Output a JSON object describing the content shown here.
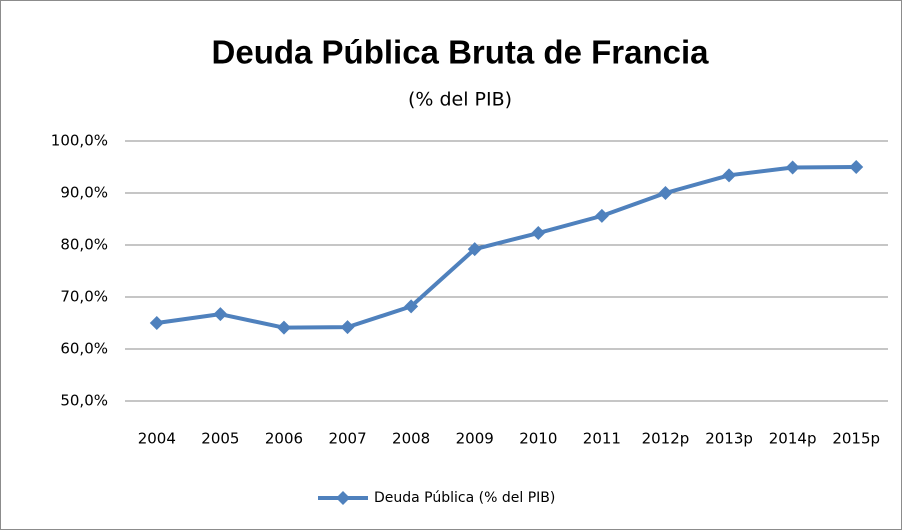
{
  "chart_data": {
    "type": "line",
    "title": "Deuda Pública Bruta de Francia",
    "subtitle": "(% del PIB)",
    "categories": [
      "2004",
      "2005",
      "2006",
      "2007",
      "2008",
      "2009",
      "2010",
      "2011",
      "2012p",
      "2013p",
      "2014p",
      "2015p"
    ],
    "series": [
      {
        "name": "Deuda Pública (% del PIB)",
        "color": "#4f81bd",
        "values": [
          65.0,
          66.7,
          64.1,
          64.2,
          68.2,
          79.2,
          82.3,
          85.6,
          90.0,
          93.4,
          94.9,
          95.0
        ]
      }
    ],
    "ylim": [
      50,
      100
    ],
    "yticks": [
      {
        "value": 50,
        "label": "50,0%"
      },
      {
        "value": 60,
        "label": "60,0%"
      },
      {
        "value": 70,
        "label": "70,0%"
      },
      {
        "value": 80,
        "label": "80,0%"
      },
      {
        "value": 90,
        "label": "90,0%"
      },
      {
        "value": 100,
        "label": "100,0%"
      }
    ],
    "grid": true,
    "legend": "bottom"
  }
}
